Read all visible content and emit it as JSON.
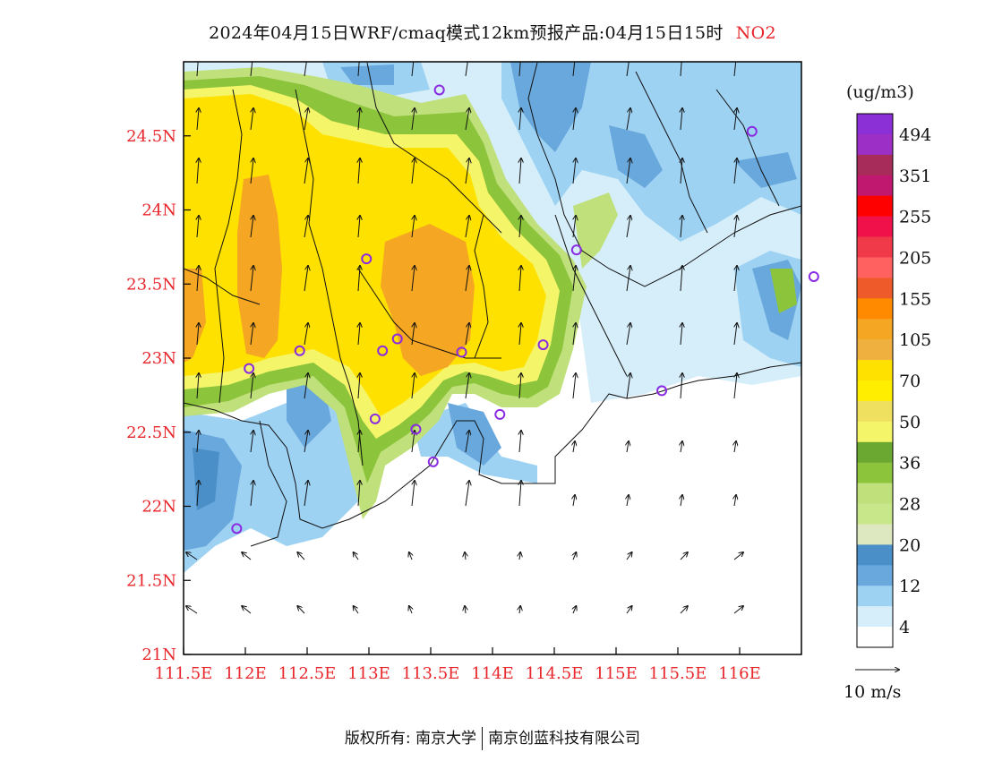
{
  "title": {
    "main": "2024年04月15日WRF/cmaq模式12km预报产品:04月15日15时",
    "pollutant": "NO2"
  },
  "axes": {
    "y_ticks": [
      "24.5N",
      "24N",
      "23.5N",
      "23N",
      "22.5N",
      "22N",
      "21.5N",
      "21N"
    ],
    "x_ticks": [
      "111.5E",
      "112E",
      "112.5E",
      "113E",
      "113.5E",
      "114E",
      "114.5E",
      "115E",
      "115.5E",
      "116E"
    ],
    "lon_range": [
      111.5,
      116.5
    ],
    "lat_range": [
      21,
      25
    ],
    "color": "#e8262b"
  },
  "legend": {
    "unit": "(ug/m3)",
    "labels": [
      "494",
      "351",
      "255",
      "205",
      "155",
      "105",
      "70",
      "50",
      "36",
      "28",
      "20",
      "12",
      "4"
    ],
    "colors_top_to_bottom": [
      "#8b2fd6",
      "#9b2fc6",
      "#a82c5a",
      "#c0186e",
      "#ff0000",
      "#f0104a",
      "#f03a4a",
      "#ff6060",
      "#ef5a2a",
      "#ff8a00",
      "#f5a623",
      "#f0b040",
      "#ffe100",
      "#ffee00",
      "#f0e060",
      "#f5f56a",
      "#6aa832",
      "#8cc43c",
      "#bfe07a",
      "#c8e68a",
      "#dde8c0",
      "#4a8fc8",
      "#69a8dc",
      "#9ed2f2",
      "#d6eefa",
      "#ffffff"
    ]
  },
  "wind": {
    "reference_label": "10 m/s"
  },
  "cities": [
    {
      "lon": 113.57,
      "lat": 24.81
    },
    {
      "lon": 116.1,
      "lat": 24.53
    },
    {
      "lon": 112.98,
      "lat": 23.67
    },
    {
      "lon": 114.68,
      "lat": 23.73
    },
    {
      "lon": 116.6,
      "lat": 23.55
    },
    {
      "lon": 113.23,
      "lat": 23.13
    },
    {
      "lon": 112.44,
      "lat": 23.05
    },
    {
      "lon": 113.11,
      "lat": 23.05
    },
    {
      "lon": 113.75,
      "lat": 23.04
    },
    {
      "lon": 114.41,
      "lat": 23.09
    },
    {
      "lon": 112.03,
      "lat": 22.93
    },
    {
      "lon": 115.37,
      "lat": 22.78
    },
    {
      "lon": 113.05,
      "lat": 22.59
    },
    {
      "lon": 113.38,
      "lat": 22.52
    },
    {
      "lon": 114.06,
      "lat": 22.62
    },
    {
      "lon": 113.52,
      "lat": 22.3
    },
    {
      "lon": 111.93,
      "lat": 21.85
    }
  ],
  "footer": {
    "left": "版权所有: 南京大学",
    "right": "南京创蓝科技有限公司"
  }
}
